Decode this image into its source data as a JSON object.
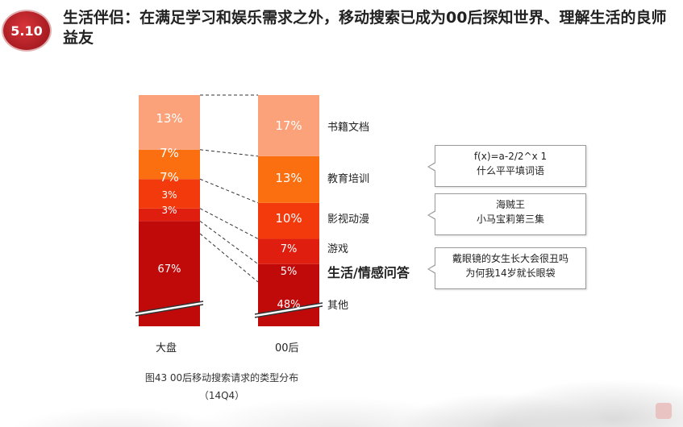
{
  "header": {
    "badge": "5.10",
    "title": "生活伴侣：在满足学习和娱乐需求之外，移动搜索已成为00后探知世界、理解生活的良师益友"
  },
  "chart_data": {
    "type": "bar",
    "stacked": true,
    "x": [
      "大盘",
      "00后"
    ],
    "series": [
      {
        "name": "其他",
        "values": [
          67,
          48
        ],
        "labels": [
          "67%",
          "48%"
        ],
        "color": "#c00a0a"
      },
      {
        "name": "生活/情感问答",
        "values": [
          3,
          5
        ],
        "labels": [
          "3%",
          "5%"
        ],
        "color": "#c00a0a"
      },
      {
        "name": "游戏",
        "values": [
          3,
          7
        ],
        "labels": [
          "3%",
          "7%"
        ],
        "color": "#e01e10"
      },
      {
        "name": "影视动漫",
        "values": [
          7,
          10
        ],
        "labels": [
          "7%",
          "10%"
        ],
        "color": "#f23a0d"
      },
      {
        "name": "教育培训",
        "values": [
          7,
          13
        ],
        "labels": [
          "7%",
          "13%"
        ],
        "color": "#fb6f11"
      },
      {
        "name": "书籍文档",
        "values": [
          13,
          17
        ],
        "labels": [
          "13%",
          "17%"
        ],
        "color": "#fba27a"
      }
    ],
    "highlight_series": "生活/情感问答",
    "axis_break": true,
    "legend": "right",
    "caption_line1": "图43 00后移动搜索请求的类型分布",
    "caption_line2": "（14Q4）"
  },
  "callouts": [
    {
      "line1": "f(x)=a-2/2^x 1",
      "line2": "什么平平填词语"
    },
    {
      "line1": "海贼王",
      "line2": "小马宝莉第三集"
    },
    {
      "line1": "戴眼镜的女生长大会很丑吗",
      "line2": "为何我14岁就长眼袋"
    }
  ]
}
